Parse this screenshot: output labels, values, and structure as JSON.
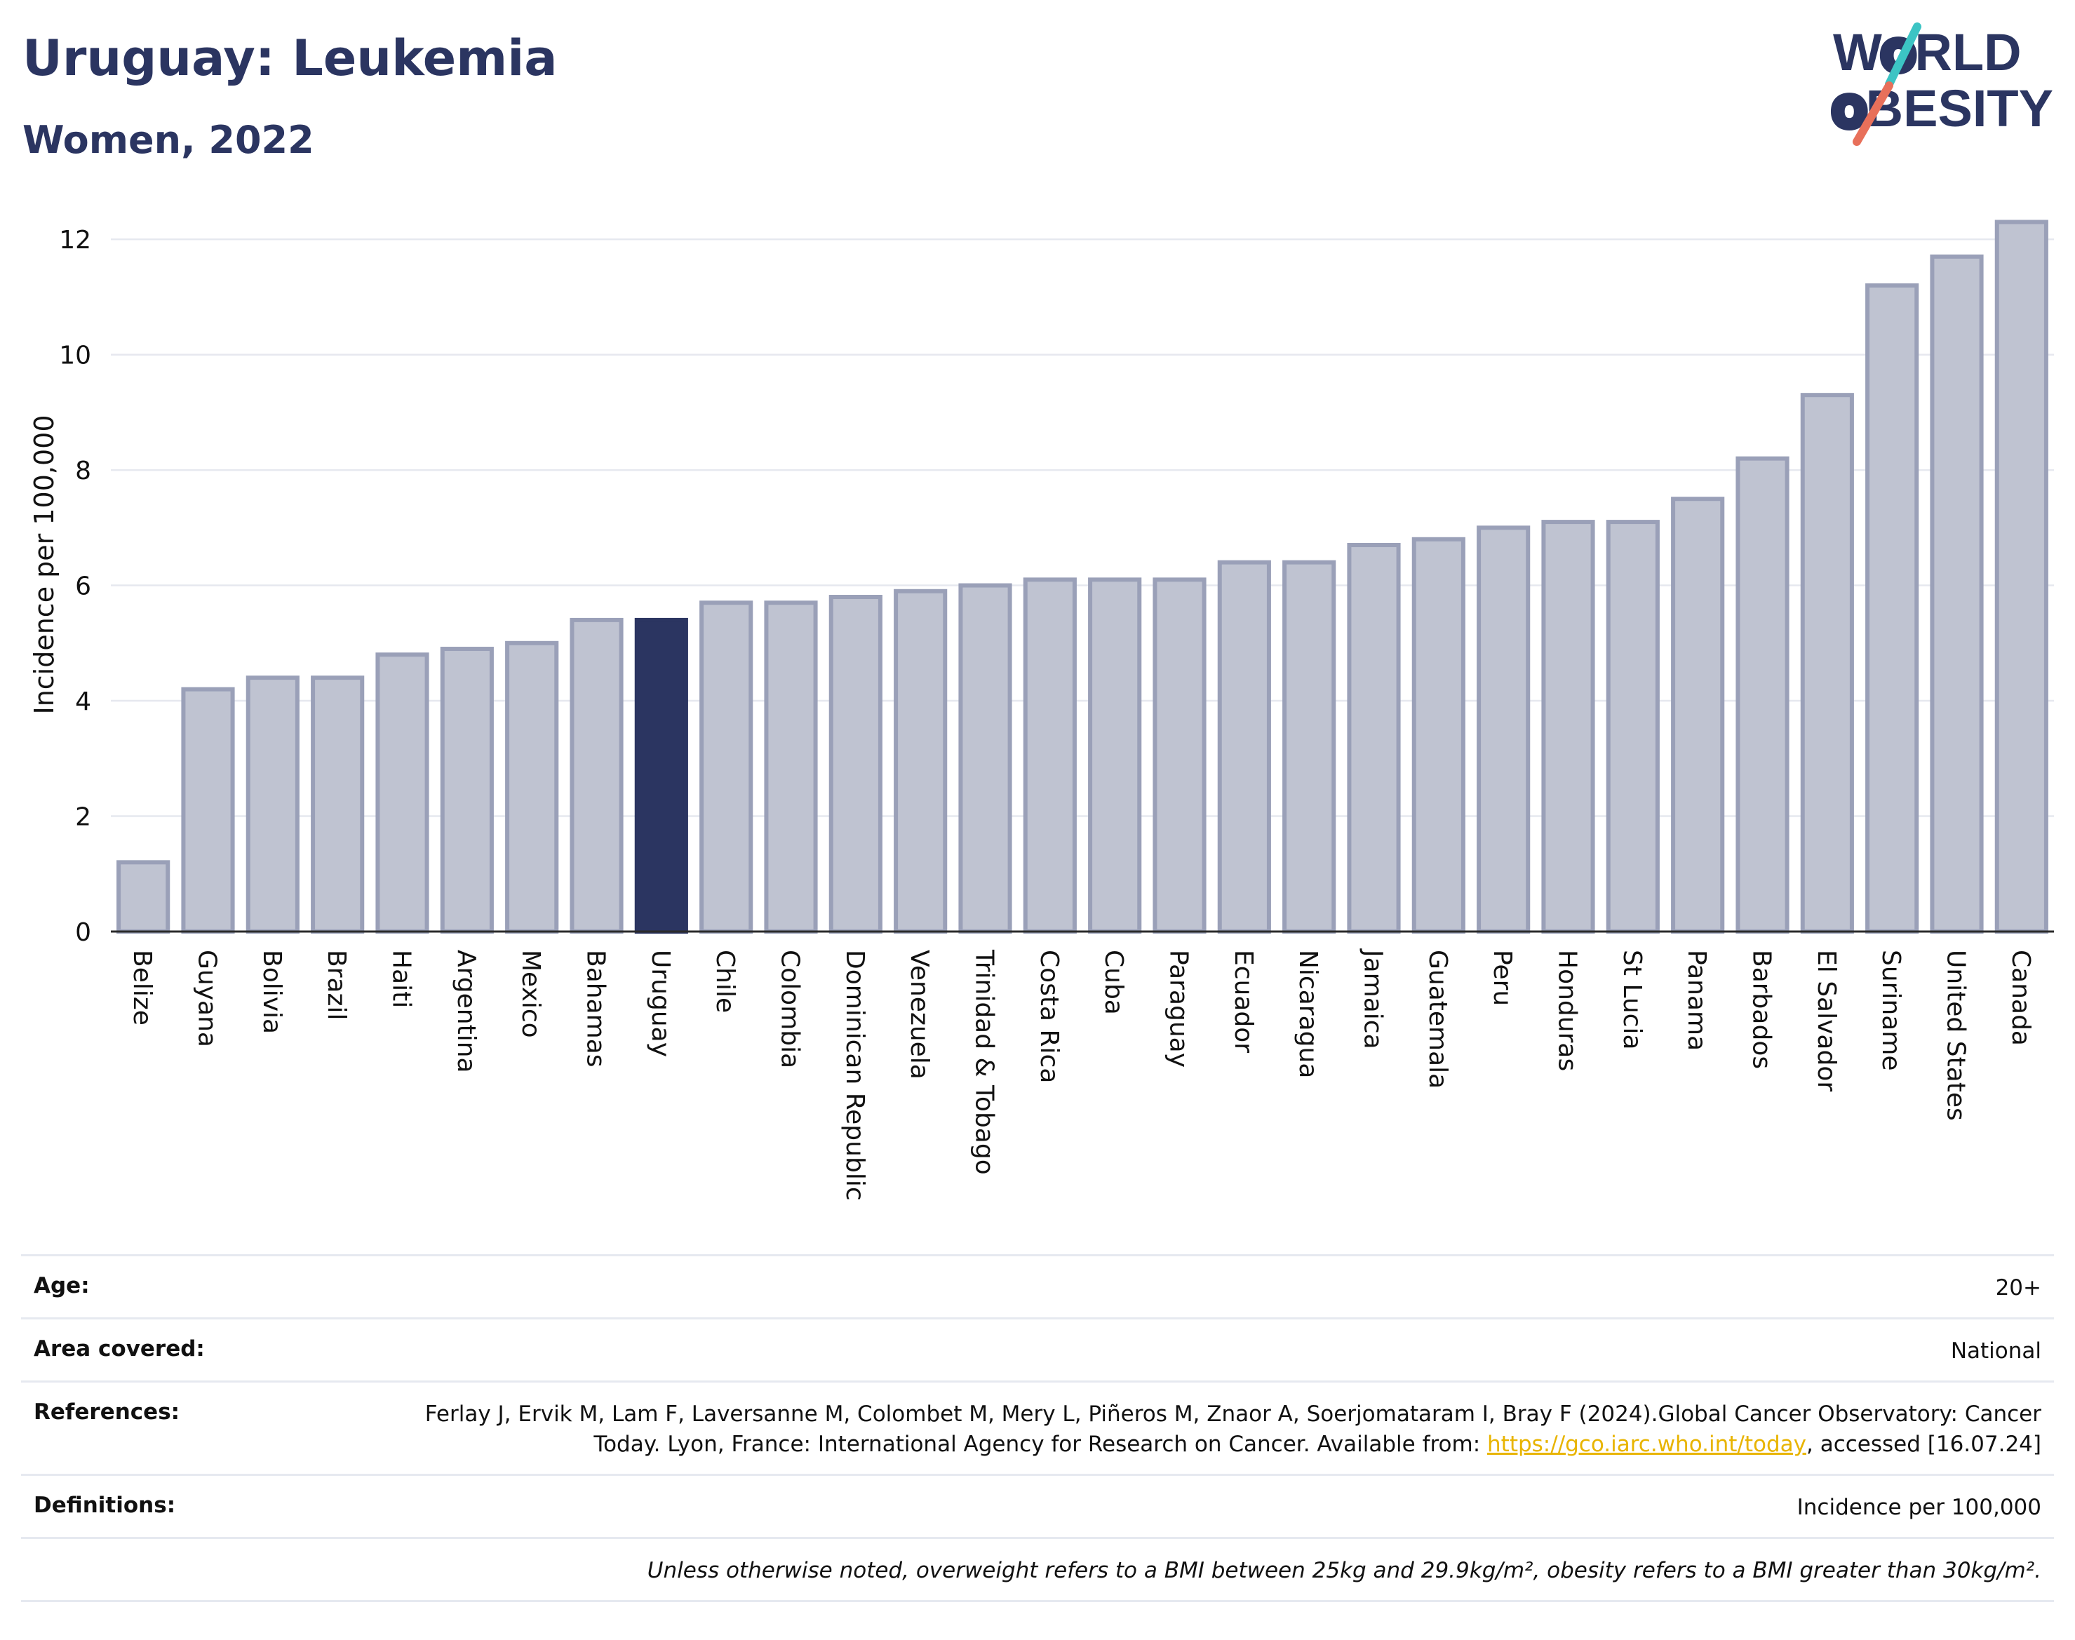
{
  "header": {
    "title": "Uruguay: Leukemia",
    "subtitle": "Women, 2022"
  },
  "logo": {
    "line1_pre": "W",
    "line1_post": "RLD",
    "line2_pre": "",
    "line2_post": "BESITY",
    "text_color": "#2b3561",
    "slash_colors": [
      "#3cc4c4",
      "#e8705a"
    ]
  },
  "chart_data": {
    "type": "bar",
    "ylabel": "Incidence per 100,000",
    "xlabel": "",
    "ylim": [
      0,
      12.5
    ],
    "yticks": [
      0,
      2,
      4,
      6,
      8,
      10,
      12
    ],
    "grid": true,
    "highlight": "Uruguay",
    "highlight_color": "#2b3561",
    "bar_color": "#bfc3d1",
    "bar_edge_color": "#9aa0b8",
    "categories": [
      "Belize",
      "Guyana",
      "Bolivia",
      "Brazil",
      "Haiti",
      "Argentina",
      "Mexico",
      "Bahamas",
      "Uruguay",
      "Chile",
      "Colombia",
      "Dominican Republic",
      "Venezuela",
      "Trinidad & Tobago",
      "Costa Rica",
      "Cuba",
      "Paraguay",
      "Ecuador",
      "Nicaragua",
      "Jamaica",
      "Guatemala",
      "Peru",
      "Honduras",
      "St Lucia",
      "Panama",
      "Barbados",
      "El Salvador",
      "Suriname",
      "United States",
      "Canada"
    ],
    "values": [
      1.2,
      4.2,
      4.4,
      4.4,
      4.8,
      4.9,
      5.0,
      5.4,
      5.4,
      5.7,
      5.7,
      5.8,
      5.9,
      6.0,
      6.1,
      6.1,
      6.1,
      6.4,
      6.4,
      6.7,
      6.8,
      7.0,
      7.1,
      7.1,
      7.5,
      8.2,
      9.3,
      11.2,
      11.7,
      12.3
    ]
  },
  "info": {
    "age_label": "Age:",
    "age_value": "20+",
    "area_label": "Area covered:",
    "area_value": "National",
    "references_label": "References:",
    "references_text_1": "Ferlay J, Ervik M, Lam F, Laversanne M, Colombet M, Mery L, Piñeros M, Znaor A, Soerjomataram I, Bray F (2024).Global Cancer Observatory: Cancer Today. Lyon, France: International Agency for Research on Cancer. Available from: ",
    "references_link": "https://gco.iarc.who.int/today",
    "references_text_2": ", accessed [16.07.24]",
    "definitions_label": "Definitions:",
    "definitions_value": "Incidence per 100,000",
    "note": "Unless otherwise noted, overweight refers to a BMI between 25kg and 29.9kg/m², obesity refers to a BMI greater than 30kg/m²."
  }
}
